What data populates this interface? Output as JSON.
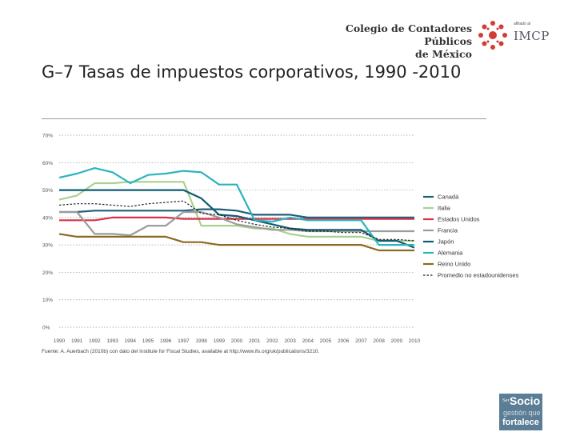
{
  "header": {
    "org_name_line1": "Colegio de Contadores Públicos",
    "org_name_line2": "de México",
    "affiliate_small": "afiliado al",
    "affiliate": "IMCP"
  },
  "slide": {
    "title": "G–7  Tasas de impuestos corporativos, 1990 -2010"
  },
  "badge": {
    "ser": "Ser",
    "socio": "Socio",
    "gestion": "gestión que",
    "fortalece": "fortalece"
  },
  "chart_data": {
    "type": "line",
    "title": "G–7  Tasas de impuestos corporativos, 1990 -2010",
    "x": [
      1990,
      1991,
      1992,
      1993,
      1994,
      1995,
      1996,
      1997,
      1998,
      1999,
      2000,
      2001,
      2002,
      2003,
      2004,
      2005,
      2006,
      2007,
      2008,
      2009,
      2010
    ],
    "ylim": [
      0,
      70
    ],
    "yticks": [
      0,
      10,
      20,
      30,
      40,
      50,
      60,
      70
    ],
    "ytick_labels": [
      "0%",
      "10%",
      "20%",
      "30%",
      "40%",
      "50%",
      "60%",
      "70%"
    ],
    "grid": true,
    "legend_position": "right",
    "source": "Fuente: A. Auerbach (2010b) con dato del Institute for Fiscal Studies, available at http://www.ifs.org/uk/publications/3210.",
    "series": [
      {
        "name": "Canadá",
        "color": "#1f5f7a",
        "dashed": false,
        "values": [
          42,
          42,
          42.5,
          42.5,
          42.5,
          42.5,
          42.5,
          42.5,
          43,
          43,
          42.5,
          41,
          41,
          41,
          40,
          40,
          40,
          40,
          40,
          40,
          40
        ]
      },
      {
        "name": "Italia",
        "color": "#a9d18e",
        "dashed": false,
        "values": [
          46.5,
          48,
          52.5,
          52.5,
          53,
          53,
          53,
          53,
          37,
          37,
          37,
          36,
          36,
          34,
          33,
          33,
          33,
          33,
          31.5,
          31.5,
          31.5
        ]
      },
      {
        "name": "Estados Unidos",
        "color": "#d6334a",
        "dashed": false,
        "values": [
          39,
          39,
          39,
          40,
          40,
          40,
          40,
          39.5,
          39.5,
          39.5,
          39.5,
          39.5,
          39.5,
          39.5,
          39.5,
          39.5,
          39.5,
          39.5,
          39.5,
          39.5,
          39.5
        ]
      },
      {
        "name": "Francia",
        "color": "#9b9b9b",
        "dashed": false,
        "values": [
          42,
          42,
          34,
          34,
          33.5,
          37,
          37,
          42,
          42,
          40,
          37.5,
          36.5,
          35.5,
          35.5,
          35,
          35,
          35,
          35,
          35,
          35,
          35
        ]
      },
      {
        "name": "Japón",
        "color": "#0f5c73",
        "dashed": false,
        "values": [
          50,
          50,
          50,
          50,
          50,
          50,
          50,
          50,
          47,
          41,
          40.5,
          39,
          37.5,
          36,
          35.5,
          35.5,
          35.5,
          35.5,
          31.5,
          31.5,
          29
        ]
      },
      {
        "name": "Alemania",
        "color": "#2bb3c0",
        "dashed": false,
        "values": [
          54.5,
          56,
          58,
          56.5,
          52.5,
          55.5,
          56,
          57,
          56.5,
          52,
          52,
          39,
          38.5,
          40,
          39,
          39,
          39,
          39,
          30,
          30,
          30
        ]
      },
      {
        "name": "Reino Unido",
        "color": "#8c6a1e",
        "dashed": false,
        "values": [
          34,
          33,
          33,
          33,
          33,
          33,
          33,
          31,
          31,
          30,
          30,
          30,
          30,
          30,
          30,
          30,
          30,
          30,
          28,
          28,
          28
        ]
      },
      {
        "name": "Promedio no estadounidenses",
        "color": "#222222",
        "dashed": true,
        "values": [
          44.5,
          45,
          45,
          44.5,
          44,
          45,
          45.5,
          46,
          41.5,
          41,
          39,
          37.5,
          36.5,
          36,
          35,
          35,
          34.5,
          34.5,
          32,
          32,
          31.5
        ]
      }
    ]
  }
}
